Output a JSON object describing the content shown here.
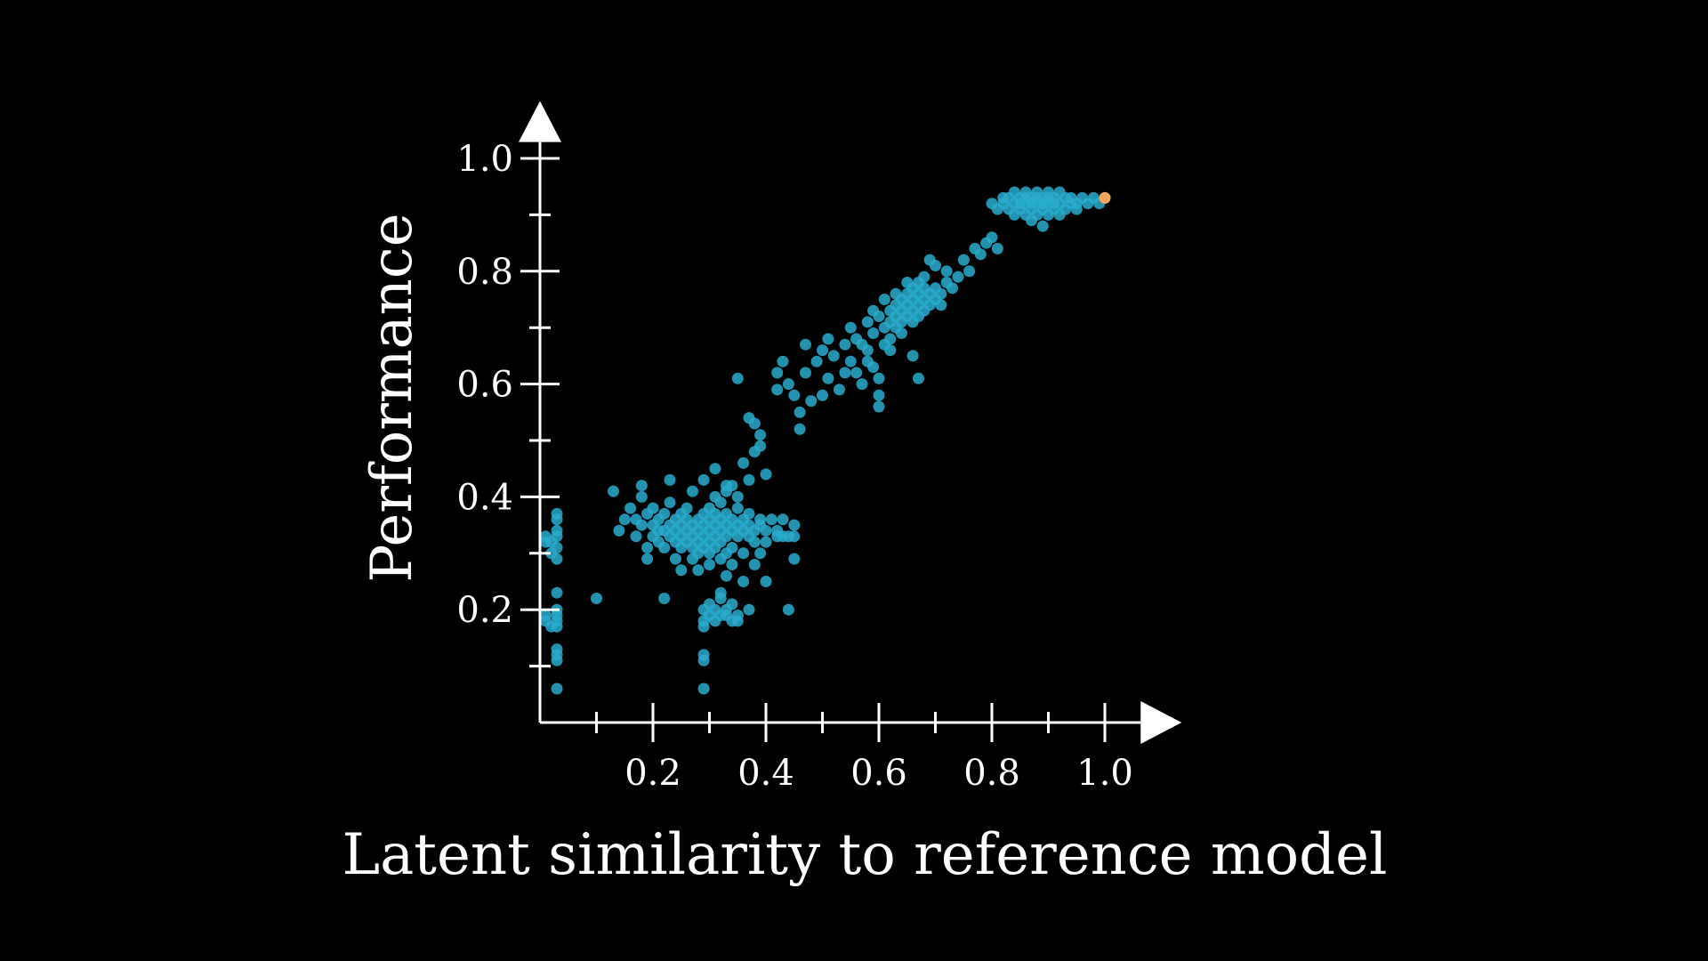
{
  "colors": {
    "background": "#000000",
    "axis": "#ffffff",
    "point": "#29abce",
    "highlight": "#f5a65b"
  },
  "chart_data": {
    "type": "scatter",
    "xlabel": "Latent similarity to reference model",
    "ylabel": "Performance",
    "xlim": [
      0,
      1.15
    ],
    "ylim": [
      0,
      1.1
    ],
    "x_ticks": [
      0.1,
      0.2,
      0.3,
      0.4,
      0.5,
      0.6,
      0.7,
      0.8,
      0.9,
      1.0
    ],
    "x_tick_labels": [
      "",
      "0.2",
      "",
      "0.4",
      "",
      "0.6",
      "",
      "0.8",
      "",
      "1.0"
    ],
    "y_ticks": [
      0.1,
      0.2,
      0.3,
      0.4,
      0.5,
      0.6,
      0.7,
      0.8,
      0.9,
      1.0
    ],
    "y_tick_labels": [
      "",
      "0.2",
      "",
      "0.4",
      "",
      "0.6",
      "",
      "0.8",
      "",
      "1.0"
    ],
    "grid": false,
    "legend": "none",
    "series": [
      {
        "points": [
          [
            0.01,
            0.32
          ],
          [
            0.01,
            0.33
          ],
          [
            0.02,
            0.32
          ],
          [
            0.02,
            0.3
          ],
          [
            0.03,
            0.33
          ],
          [
            0.03,
            0.34
          ],
          [
            0.03,
            0.37
          ],
          [
            0.03,
            0.36
          ],
          [
            0.03,
            0.31
          ],
          [
            0.03,
            0.29
          ],
          [
            0.01,
            0.19
          ],
          [
            0.01,
            0.18
          ],
          [
            0.02,
            0.17
          ],
          [
            0.03,
            0.19
          ],
          [
            0.03,
            0.18
          ],
          [
            0.03,
            0.17
          ],
          [
            0.03,
            0.23
          ],
          [
            0.03,
            0.2
          ],
          [
            0.03,
            0.13
          ],
          [
            0.03,
            0.12
          ],
          [
            0.03,
            0.11
          ],
          [
            0.03,
            0.06
          ],
          [
            0.1,
            0.22
          ],
          [
            0.13,
            0.41
          ],
          [
            0.14,
            0.34
          ],
          [
            0.15,
            0.36
          ],
          [
            0.16,
            0.38
          ],
          [
            0.17,
            0.36
          ],
          [
            0.17,
            0.33
          ],
          [
            0.18,
            0.35
          ],
          [
            0.18,
            0.4
          ],
          [
            0.18,
            0.42
          ],
          [
            0.19,
            0.37
          ],
          [
            0.19,
            0.31
          ],
          [
            0.19,
            0.29
          ],
          [
            0.2,
            0.33
          ],
          [
            0.2,
            0.35
          ],
          [
            0.2,
            0.38
          ],
          [
            0.21,
            0.34
          ],
          [
            0.21,
            0.36
          ],
          [
            0.21,
            0.32
          ],
          [
            0.22,
            0.34
          ],
          [
            0.22,
            0.37
          ],
          [
            0.22,
            0.31
          ],
          [
            0.22,
            0.22
          ],
          [
            0.23,
            0.35
          ],
          [
            0.23,
            0.33
          ],
          [
            0.23,
            0.39
          ],
          [
            0.23,
            0.43
          ],
          [
            0.24,
            0.36
          ],
          [
            0.24,
            0.34
          ],
          [
            0.24,
            0.32
          ],
          [
            0.24,
            0.29
          ],
          [
            0.25,
            0.35
          ],
          [
            0.25,
            0.33
          ],
          [
            0.25,
            0.37
          ],
          [
            0.25,
            0.31
          ],
          [
            0.25,
            0.27
          ],
          [
            0.26,
            0.34
          ],
          [
            0.26,
            0.36
          ],
          [
            0.26,
            0.32
          ],
          [
            0.26,
            0.38
          ],
          [
            0.27,
            0.35
          ],
          [
            0.27,
            0.33
          ],
          [
            0.27,
            0.31
          ],
          [
            0.27,
            0.29
          ],
          [
            0.27,
            0.41
          ],
          [
            0.28,
            0.34
          ],
          [
            0.28,
            0.36
          ],
          [
            0.28,
            0.32
          ],
          [
            0.28,
            0.3
          ],
          [
            0.28,
            0.27
          ],
          [
            0.29,
            0.35
          ],
          [
            0.29,
            0.33
          ],
          [
            0.29,
            0.37
          ],
          [
            0.29,
            0.31
          ],
          [
            0.29,
            0.43
          ],
          [
            0.3,
            0.34
          ],
          [
            0.3,
            0.36
          ],
          [
            0.3,
            0.32
          ],
          [
            0.3,
            0.3
          ],
          [
            0.3,
            0.38
          ],
          [
            0.3,
            0.28
          ],
          [
            0.31,
            0.35
          ],
          [
            0.31,
            0.33
          ],
          [
            0.31,
            0.37
          ],
          [
            0.31,
            0.31
          ],
          [
            0.31,
            0.4
          ],
          [
            0.31,
            0.45
          ],
          [
            0.32,
            0.34
          ],
          [
            0.32,
            0.36
          ],
          [
            0.32,
            0.32
          ],
          [
            0.32,
            0.29
          ],
          [
            0.32,
            0.39
          ],
          [
            0.33,
            0.35
          ],
          [
            0.33,
            0.33
          ],
          [
            0.33,
            0.37
          ],
          [
            0.33,
            0.3
          ],
          [
            0.33,
            0.42
          ],
          [
            0.33,
            0.26
          ],
          [
            0.34,
            0.34
          ],
          [
            0.34,
            0.36
          ],
          [
            0.34,
            0.31
          ],
          [
            0.34,
            0.28
          ],
          [
            0.35,
            0.35
          ],
          [
            0.35,
            0.33
          ],
          [
            0.35,
            0.38
          ],
          [
            0.35,
            0.4
          ],
          [
            0.36,
            0.34
          ],
          [
            0.36,
            0.36
          ],
          [
            0.36,
            0.3
          ],
          [
            0.36,
            0.25
          ],
          [
            0.37,
            0.35
          ],
          [
            0.37,
            0.33
          ],
          [
            0.37,
            0.37
          ],
          [
            0.37,
            0.43
          ],
          [
            0.38,
            0.34
          ],
          [
            0.38,
            0.32
          ],
          [
            0.38,
            0.28
          ],
          [
            0.39,
            0.35
          ],
          [
            0.39,
            0.36
          ],
          [
            0.39,
            0.3
          ],
          [
            0.4,
            0.34
          ],
          [
            0.4,
            0.32
          ],
          [
            0.4,
            0.25
          ],
          [
            0.41,
            0.36
          ],
          [
            0.42,
            0.34
          ],
          [
            0.42,
            0.33
          ],
          [
            0.43,
            0.33
          ],
          [
            0.43,
            0.36
          ],
          [
            0.44,
            0.33
          ],
          [
            0.44,
            0.2
          ],
          [
            0.45,
            0.35
          ],
          [
            0.45,
            0.29
          ],
          [
            0.45,
            0.33
          ],
          [
            0.29,
            0.2
          ],
          [
            0.29,
            0.18
          ],
          [
            0.29,
            0.17
          ],
          [
            0.29,
            0.12
          ],
          [
            0.29,
            0.11
          ],
          [
            0.29,
            0.06
          ],
          [
            0.3,
            0.19
          ],
          [
            0.3,
            0.21
          ],
          [
            0.31,
            0.18
          ],
          [
            0.31,
            0.2
          ],
          [
            0.32,
            0.19
          ],
          [
            0.32,
            0.22
          ],
          [
            0.32,
            0.23
          ],
          [
            0.33,
            0.19
          ],
          [
            0.33,
            0.2
          ],
          [
            0.34,
            0.21
          ],
          [
            0.34,
            0.18
          ],
          [
            0.35,
            0.19
          ],
          [
            0.35,
            0.18
          ],
          [
            0.37,
            0.2
          ],
          [
            0.33,
            0.41
          ],
          [
            0.34,
            0.42
          ],
          [
            0.35,
            0.61
          ],
          [
            0.36,
            0.46
          ],
          [
            0.37,
            0.54
          ],
          [
            0.38,
            0.48
          ],
          [
            0.38,
            0.53
          ],
          [
            0.39,
            0.51
          ],
          [
            0.39,
            0.49
          ],
          [
            0.4,
            0.44
          ],
          [
            0.42,
            0.59
          ],
          [
            0.42,
            0.62
          ],
          [
            0.43,
            0.64
          ],
          [
            0.44,
            0.6
          ],
          [
            0.45,
            0.58
          ],
          [
            0.46,
            0.55
          ],
          [
            0.46,
            0.52
          ],
          [
            0.47,
            0.67
          ],
          [
            0.47,
            0.62
          ],
          [
            0.48,
            0.57
          ],
          [
            0.49,
            0.64
          ],
          [
            0.5,
            0.66
          ],
          [
            0.5,
            0.58
          ],
          [
            0.51,
            0.68
          ],
          [
            0.51,
            0.61
          ],
          [
            0.52,
            0.65
          ],
          [
            0.53,
            0.59
          ],
          [
            0.54,
            0.67
          ],
          [
            0.54,
            0.62
          ],
          [
            0.55,
            0.7
          ],
          [
            0.55,
            0.64
          ],
          [
            0.56,
            0.68
          ],
          [
            0.56,
            0.62
          ],
          [
            0.57,
            0.6
          ],
          [
            0.57,
            0.67
          ],
          [
            0.58,
            0.71
          ],
          [
            0.58,
            0.66
          ],
          [
            0.58,
            0.64
          ],
          [
            0.59,
            0.73
          ],
          [
            0.59,
            0.69
          ],
          [
            0.59,
            0.63
          ],
          [
            0.6,
            0.61
          ],
          [
            0.6,
            0.58
          ],
          [
            0.6,
            0.56
          ],
          [
            0.6,
            0.72
          ],
          [
            0.61,
            0.7
          ],
          [
            0.61,
            0.67
          ],
          [
            0.61,
            0.75
          ],
          [
            0.62,
            0.73
          ],
          [
            0.62,
            0.71
          ],
          [
            0.62,
            0.68
          ],
          [
            0.62,
            0.66
          ],
          [
            0.63,
            0.74
          ],
          [
            0.63,
            0.72
          ],
          [
            0.63,
            0.7
          ],
          [
            0.63,
            0.76
          ],
          [
            0.64,
            0.73
          ],
          [
            0.64,
            0.75
          ],
          [
            0.64,
            0.71
          ],
          [
            0.64,
            0.69
          ],
          [
            0.65,
            0.74
          ],
          [
            0.65,
            0.76
          ],
          [
            0.65,
            0.72
          ],
          [
            0.65,
            0.78
          ],
          [
            0.66,
            0.75
          ],
          [
            0.66,
            0.73
          ],
          [
            0.66,
            0.77
          ],
          [
            0.66,
            0.71
          ],
          [
            0.66,
            0.65
          ],
          [
            0.67,
            0.76
          ],
          [
            0.67,
            0.74
          ],
          [
            0.67,
            0.78
          ],
          [
            0.67,
            0.72
          ],
          [
            0.67,
            0.61
          ],
          [
            0.68,
            0.75
          ],
          [
            0.68,
            0.77
          ],
          [
            0.68,
            0.79
          ],
          [
            0.68,
            0.73
          ],
          [
            0.69,
            0.76
          ],
          [
            0.69,
            0.74
          ],
          [
            0.69,
            0.82
          ],
          [
            0.7,
            0.77
          ],
          [
            0.7,
            0.75
          ],
          [
            0.7,
            0.81
          ],
          [
            0.71,
            0.76
          ],
          [
            0.71,
            0.74
          ],
          [
            0.72,
            0.78
          ],
          [
            0.72,
            0.8
          ],
          [
            0.73,
            0.77
          ],
          [
            0.74,
            0.79
          ],
          [
            0.75,
            0.82
          ],
          [
            0.76,
            0.8
          ],
          [
            0.77,
            0.84
          ],
          [
            0.78,
            0.83
          ],
          [
            0.79,
            0.85
          ],
          [
            0.8,
            0.86
          ],
          [
            0.81,
            0.84
          ],
          [
            0.8,
            0.92
          ],
          [
            0.81,
            0.91
          ],
          [
            0.82,
            0.93
          ],
          [
            0.82,
            0.92
          ],
          [
            0.83,
            0.91
          ],
          [
            0.83,
            0.93
          ],
          [
            0.84,
            0.92
          ],
          [
            0.84,
            0.9
          ],
          [
            0.84,
            0.94
          ],
          [
            0.85,
            0.91
          ],
          [
            0.85,
            0.93
          ],
          [
            0.85,
            0.92
          ],
          [
            0.86,
            0.9
          ],
          [
            0.86,
            0.92
          ],
          [
            0.86,
            0.94
          ],
          [
            0.86,
            0.93
          ],
          [
            0.87,
            0.91
          ],
          [
            0.87,
            0.93
          ],
          [
            0.87,
            0.89
          ],
          [
            0.87,
            0.92
          ],
          [
            0.88,
            0.92
          ],
          [
            0.88,
            0.94
          ],
          [
            0.88,
            0.9
          ],
          [
            0.88,
            0.93
          ],
          [
            0.89,
            0.91
          ],
          [
            0.89,
            0.93
          ],
          [
            0.89,
            0.92
          ],
          [
            0.89,
            0.88
          ],
          [
            0.9,
            0.92
          ],
          [
            0.9,
            0.94
          ],
          [
            0.9,
            0.9
          ],
          [
            0.9,
            0.93
          ],
          [
            0.91,
            0.91
          ],
          [
            0.91,
            0.93
          ],
          [
            0.91,
            0.92
          ],
          [
            0.92,
            0.92
          ],
          [
            0.92,
            0.94
          ],
          [
            0.92,
            0.9
          ],
          [
            0.93,
            0.93
          ],
          [
            0.93,
            0.91
          ],
          [
            0.94,
            0.92
          ],
          [
            0.94,
            0.93
          ],
          [
            0.95,
            0.92
          ],
          [
            0.95,
            0.91
          ],
          [
            0.96,
            0.93
          ],
          [
            0.97,
            0.92
          ],
          [
            0.98,
            0.93
          ],
          [
            0.99,
            0.92
          ],
          [
            1.0,
            0.93
          ]
        ]
      }
    ],
    "highlight_point": [
      1.0,
      0.93
    ]
  }
}
